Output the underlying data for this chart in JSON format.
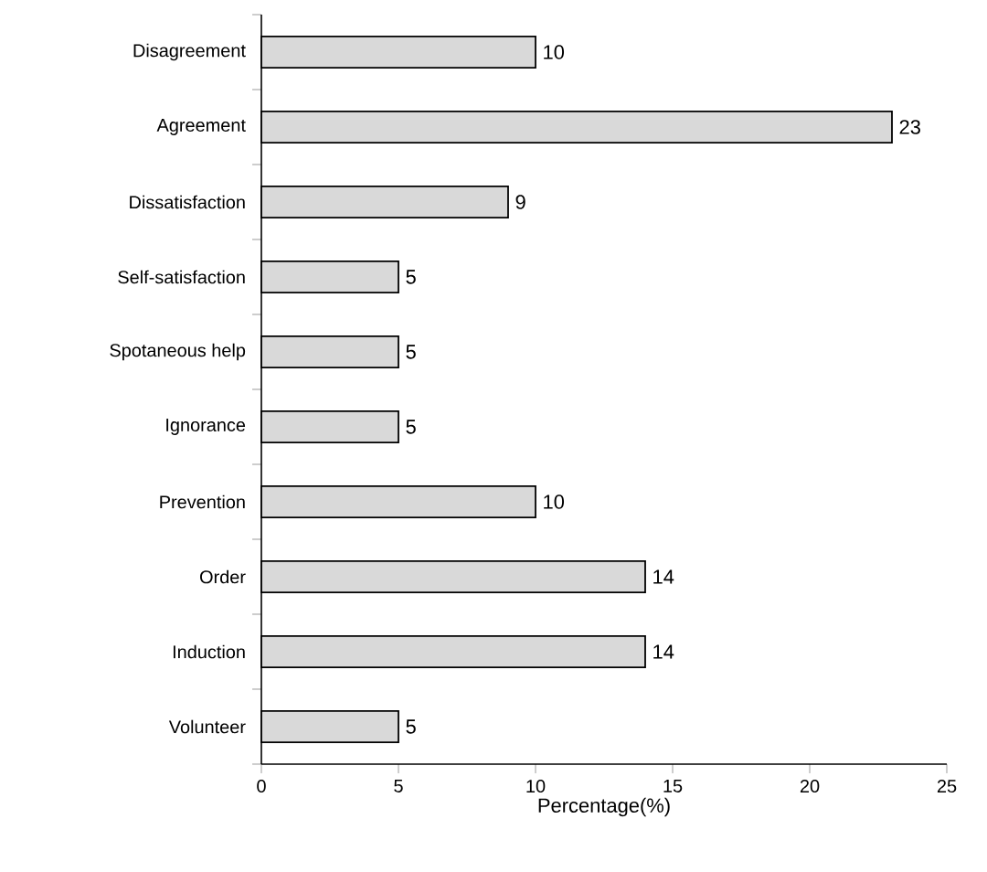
{
  "chart_data": {
    "type": "bar",
    "orientation": "horizontal",
    "xlabel": "Percentage(%)",
    "categories": [
      "Disagreement",
      "Agreement",
      "Dissatisfaction",
      "Self-satisfaction",
      "Spotaneous help",
      "Ignorance",
      "Prevention",
      "Order",
      "Induction",
      "Volunteer"
    ],
    "values": [
      10,
      23,
      9,
      5,
      5,
      5,
      10,
      14,
      14,
      5
    ],
    "color": "#d9d9d9",
    "xlim": [
      0,
      25
    ],
    "xticks": [
      0,
      5,
      10,
      15,
      20,
      25
    ],
    "data_labels": true
  }
}
